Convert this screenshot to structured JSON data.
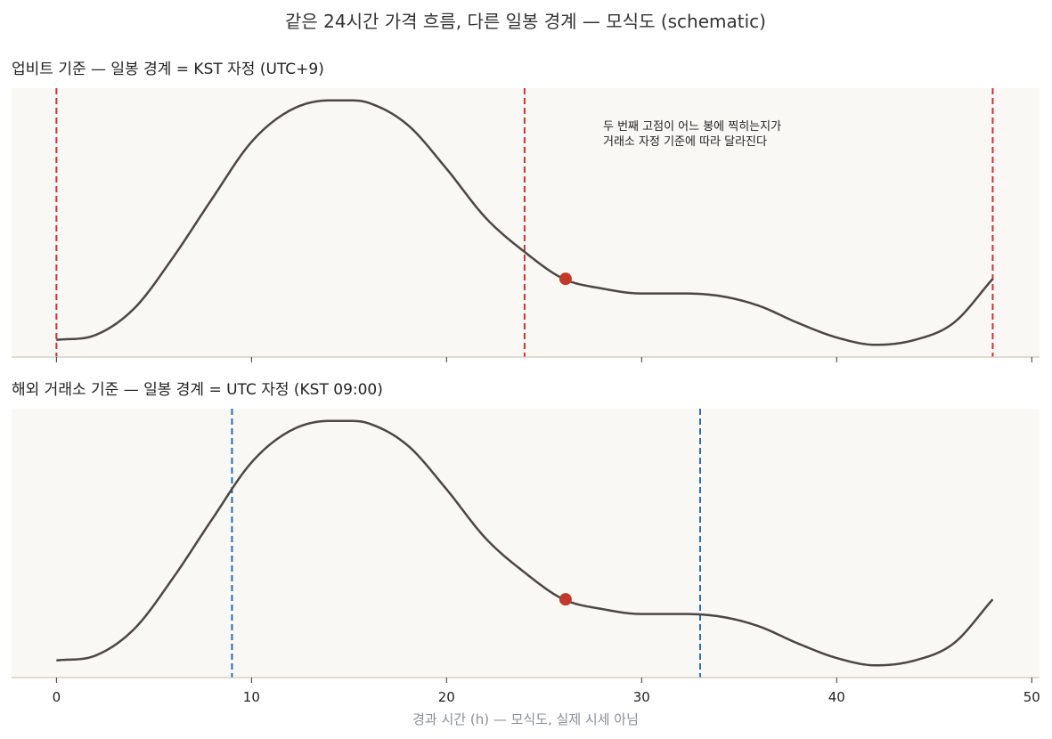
{
  "figure": {
    "title": "같은 24시간 가격 흐름, 다른 일봉 경계 — 모식도 (schematic)",
    "xlabel": "경과 시간 (h) — 모식도, 실제 시세 아님"
  },
  "panels": [
    {
      "subtitle": "업비트 기준 — 일봉 경계 = KST 자정 (UTC+9)",
      "annotation": [
        "두 번째 고점이 어느 봉에 찍히는지가",
        "거래소 자정 기준에 따라 달라진다"
      ]
    },
    {
      "subtitle": "해외 거래소 기준 — 일봉 경계 = UTC 자정 (KST 09:00)"
    }
  ],
  "colors": {
    "price_line": "#4a4744",
    "kst_boundary": "#d0312d",
    "utc_boundary": "#2a6db0",
    "marker": "#c0392b",
    "panel_bg": "#f9f8f5",
    "axis": "#cfc8b8"
  },
  "chart_data": [
    {
      "type": "line",
      "panel": "top",
      "series": [
        {
          "x": [
            0,
            2,
            4,
            6,
            8,
            10,
            12,
            14,
            15,
            16,
            18,
            20,
            22,
            24,
            26,
            28,
            30,
            32,
            34,
            36,
            38,
            40,
            42,
            44,
            46,
            48
          ],
          "y": [
            0.02,
            0.04,
            0.15,
            0.36,
            0.6,
            0.83,
            0.96,
            1.0,
            1.0,
            0.99,
            0.9,
            0.72,
            0.52,
            0.38,
            0.27,
            0.23,
            0.21,
            0.21,
            0.2,
            0.16,
            0.09,
            0.03,
            0.0,
            0.02,
            0.09,
            0.27
          ]
        }
      ],
      "marker": {
        "x": 26.1,
        "y": 0.27
      },
      "boundaries": [
        0,
        24,
        48
      ],
      "xlim": [
        -2.3,
        50.4
      ],
      "xticks": [
        0,
        10,
        20,
        30,
        40,
        50
      ],
      "ylim": [
        -0.05,
        1.05
      ],
      "grid": false
    },
    {
      "type": "line",
      "panel": "bottom",
      "series": [
        {
          "x": [
            0,
            2,
            4,
            6,
            8,
            10,
            12,
            14,
            15,
            16,
            18,
            20,
            22,
            24,
            26,
            28,
            30,
            32,
            34,
            36,
            38,
            40,
            42,
            44,
            46,
            48
          ],
          "y": [
            0.02,
            0.04,
            0.15,
            0.36,
            0.6,
            0.83,
            0.96,
            1.0,
            1.0,
            0.99,
            0.9,
            0.72,
            0.52,
            0.38,
            0.27,
            0.23,
            0.21,
            0.21,
            0.2,
            0.16,
            0.09,
            0.03,
            0.0,
            0.02,
            0.09,
            0.27
          ]
        }
      ],
      "marker": {
        "x": 26.1,
        "y": 0.27
      },
      "boundaries": [
        9,
        33
      ],
      "xlim": [
        -2.3,
        50.4
      ],
      "xticks": [
        0,
        10,
        20,
        30,
        40,
        50
      ],
      "ylim": [
        -0.05,
        1.05
      ],
      "grid": false
    }
  ]
}
